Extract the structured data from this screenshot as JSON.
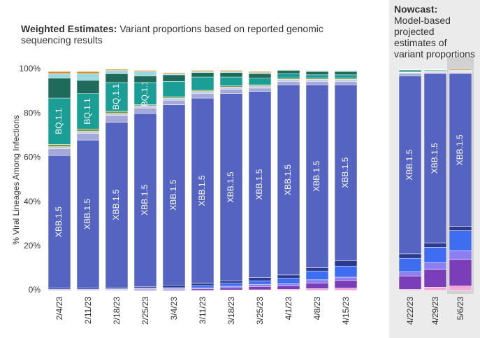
{
  "chart_data": [
    {
      "type": "bar",
      "stacked": true,
      "title": "Weighted Estimates:",
      "subtitle": "Variant proportions based on reported genomic sequencing results",
      "y_label": "% Viral Lineages Among Infections",
      "categories": [
        "2/4/23",
        "2/11/23",
        "2/18/23",
        "2/25/23",
        "3/4/23",
        "3/11/23",
        "3/18/23",
        "3/25/23",
        "4/1/23",
        "4/8/23",
        "4/15/23"
      ],
      "ylim": [
        0,
        100
      ],
      "yticks": [
        {
          "value": 0,
          "label": "0%"
        },
        {
          "value": 20,
          "label": "20%"
        },
        {
          "value": 40,
          "label": "40%"
        },
        {
          "value": 60,
          "label": "60%"
        },
        {
          "value": 80,
          "label": "80%"
        },
        {
          "value": 100,
          "label": "100%"
        }
      ],
      "series": [
        {
          "color": "#f4a6d7",
          "values": [
            0,
            0,
            0,
            0,
            0,
            0,
            0.2,
            0.3,
            0.5,
            0.8,
            1
          ]
        },
        {
          "color": "#7a3fb8",
          "values": [
            0.3,
            0.3,
            0.3,
            0.5,
            0.5,
            0.7,
            1,
            1.5,
            1.5,
            2.5,
            3.5
          ]
        },
        {
          "color": "#8d7ff2",
          "values": [
            0.2,
            0.2,
            0.2,
            0.3,
            0.3,
            0.5,
            0.7,
            1,
            1,
            1.5,
            1.5
          ]
        },
        {
          "color": "#3e6df2",
          "values": [
            0,
            0,
            0.3,
            0.3,
            0.5,
            1,
            1.5,
            1.5,
            2.5,
            4,
            5
          ]
        },
        {
          "color": "#2b3a8f",
          "values": [
            0.5,
            0.5,
            0.7,
            0.7,
            1,
            1,
            1,
            1.5,
            1.5,
            1.5,
            2.5
          ]
        },
        {
          "name": "XBB.1.5",
          "color": "#5563c1",
          "values": [
            60,
            67,
            74.5,
            78.2,
            81.7,
            83.8,
            84.6,
            84.2,
            86,
            82.7,
            79.5
          ]
        },
        {
          "color": "#a4aad8",
          "values": [
            3,
            3,
            3,
            2.5,
            2,
            2,
            2,
            1.5,
            1.5,
            1.5,
            1.5
          ]
        },
        {
          "color": "#c8cbe8",
          "values": [
            1,
            1,
            1,
            1,
            1,
            1,
            1,
            1,
            1,
            1,
            1
          ]
        },
        {
          "color": "#7d9a3a",
          "values": [
            1,
            1,
            1,
            0.5,
            0.5,
            0.5,
            0.5,
            0.5,
            0.5,
            0.5,
            0.5
          ]
        },
        {
          "name": "BQ.1.1",
          "color": "#1b9e96",
          "values": [
            21,
            16,
            13,
            10,
            7,
            6,
            4,
            3,
            2,
            1.5,
            1.5
          ]
        },
        {
          "color": "#1e6b5c",
          "values": [
            9,
            6,
            4,
            3,
            3,
            2,
            2,
            2,
            1.5,
            1.5,
            1.5
          ]
        },
        {
          "color": "#9ad9e0",
          "values": [
            2,
            3,
            1.5,
            2,
            0.5,
            0.5,
            0.5,
            0.5,
            0.3,
            0.3,
            0.3
          ]
        },
        {
          "color": "#d98c2b",
          "values": [
            1,
            1,
            0.5,
            0.5,
            0.5,
            0.5,
            0.5,
            0.5,
            0.2,
            0.2,
            0.2
          ]
        }
      ],
      "labeled_series": [
        5,
        9
      ]
    },
    {
      "type": "bar",
      "stacked": true,
      "title": "Nowcast:",
      "subtitle": "Model-based projected estimates of variant proportions",
      "categories": [
        "4/22/23",
        "4/29/23",
        "5/6/23"
      ],
      "ylim": [
        0,
        100
      ],
      "series": [
        {
          "color": "#f4a6d7",
          "values": [
            0.5,
            1.5,
            2
          ]
        },
        {
          "color": "#7a3fb8",
          "values": [
            6,
            8,
            12
          ]
        },
        {
          "color": "#8d7ff2",
          "values": [
            2,
            3,
            4
          ]
        },
        {
          "color": "#3e6df2",
          "values": [
            6,
            7,
            9
          ]
        },
        {
          "color": "#2b3a8f",
          "values": [
            2,
            2,
            2
          ]
        },
        {
          "name": "XBB.1.5",
          "color": "#5563c1",
          "values": [
            80.5,
            76.5,
            69
          ]
        },
        {
          "color": "#a4aad8",
          "values": [
            1,
            0.5,
            0.5
          ]
        },
        {
          "color": "#c8cbe8",
          "values": [
            0.5,
            0.5,
            0.3
          ]
        },
        {
          "color": "#7d9a3a",
          "values": [
            0.2,
            0.2,
            0.2
          ]
        },
        {
          "color": "#1b9e96",
          "values": [
            0.5,
            0.3,
            0.2
          ]
        },
        {
          "color": "#1e6b5c",
          "values": [
            0.5,
            0.3,
            0.3
          ]
        },
        {
          "color": "#9ad9e0",
          "values": [
            0.2,
            0.1,
            0.1
          ]
        },
        {
          "color": "#d98c2b",
          "values": [
            0.1,
            0.1,
            0.4
          ]
        }
      ],
      "labeled_series": [
        5
      ]
    }
  ]
}
